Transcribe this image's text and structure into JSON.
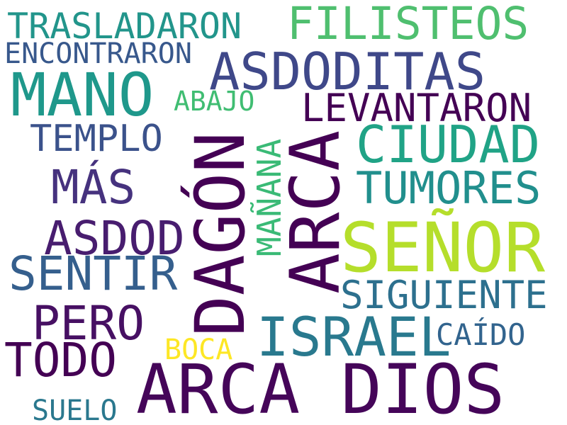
{
  "words": [
    {
      "text": "TRASLADARON",
      "color": "#22958b"
    },
    {
      "text": "FILISTEOS",
      "color": "#4fbf6f"
    },
    {
      "text": "ENCONTRARON",
      "color": "#38588c"
    },
    {
      "text": "ASDODITAS",
      "color": "#3f4889"
    },
    {
      "text": "MANO",
      "color": "#1f988b"
    },
    {
      "text": "ABAJO",
      "color": "#40bd72"
    },
    {
      "text": "LEVANTARON",
      "color": "#440154"
    },
    {
      "text": "TEMPLO",
      "color": "#3b528b"
    },
    {
      "text": "CIUDAD",
      "color": "#20a386"
    },
    {
      "text": "MAÑANA",
      "color": "#3aba76"
    },
    {
      "text": "DAGÓN",
      "color": "#440154"
    },
    {
      "text": "ARCA",
      "color": "#440154"
    },
    {
      "text": "MÁS",
      "color": "#46327e"
    },
    {
      "text": "TUMORES",
      "color": "#218f8d"
    },
    {
      "text": "ASDOD",
      "color": "#481d6f"
    },
    {
      "text": "SEÑOR",
      "color": "#b5de2b"
    },
    {
      "text": "SENTIR",
      "color": "#355f8d"
    },
    {
      "text": "SIGUIENTE",
      "color": "#2d708e"
    },
    {
      "text": "PERO",
      "color": "#471063"
    },
    {
      "text": "ISRAEL",
      "color": "#29798e"
    },
    {
      "text": "CAÍDO",
      "color": "#32648e"
    },
    {
      "text": "BOCA",
      "color": "#fde725"
    },
    {
      "text": "TODO",
      "color": "#440154"
    },
    {
      "text": "ARCA DIOS",
      "color": "#450559"
    },
    {
      "text": "SUELO",
      "color": "#2a788e"
    }
  ]
}
